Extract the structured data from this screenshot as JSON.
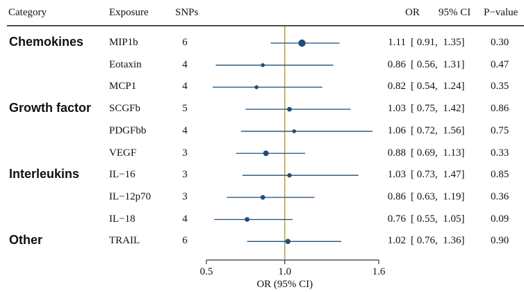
{
  "header": {
    "category": "Category",
    "exposure": "Exposure",
    "snps": "SNPs",
    "or": "OR",
    "ci": "95% CI",
    "p": "P−value"
  },
  "chart_data": {
    "type": "forest",
    "xlabel": "OR (95% CI)",
    "xlim": [
      0.5,
      1.6
    ],
    "ticks": [
      "0.5",
      "1.0",
      "1.6"
    ],
    "tick_values": [
      0.5,
      1.0,
      1.6
    ],
    "reference_line": 1.0,
    "colors": {
      "point": "#1f4e79",
      "ref_line": "#b5a642",
      "axis": "#333333"
    },
    "groups": [
      {
        "category": "Chemokines",
        "first_row": 0
      },
      {
        "category": "Growth factor",
        "first_row": 3
      },
      {
        "category": "Interleukins",
        "first_row": 6
      },
      {
        "category": "Other",
        "first_row": 9
      }
    ],
    "rows": [
      {
        "exposure": "MIP1b",
        "snps": "6",
        "or": 1.11,
        "lo": 0.91,
        "hi": 1.35,
        "or_text": "1.11",
        "ci_text": "[ 0.91,  1.35]",
        "p": "0.30",
        "weight": 3
      },
      {
        "exposure": "Eotaxin",
        "snps": "4",
        "or": 0.86,
        "lo": 0.56,
        "hi": 1.31,
        "or_text": "0.86",
        "ci_text": "[ 0.56,  1.31]",
        "p": "0.47",
        "weight": 1
      },
      {
        "exposure": "MCP1",
        "snps": "4",
        "or": 0.82,
        "lo": 0.54,
        "hi": 1.24,
        "or_text": "0.82",
        "ci_text": "[ 0.54,  1.24]",
        "p": "0.35",
        "weight": 1
      },
      {
        "exposure": "SCGFb",
        "snps": "5",
        "or": 1.03,
        "lo": 0.75,
        "hi": 1.42,
        "or_text": "1.03",
        "ci_text": "[ 0.75,  1.42]",
        "p": "0.86",
        "weight": 1.5
      },
      {
        "exposure": "PDGFbb",
        "snps": "4",
        "or": 1.06,
        "lo": 0.72,
        "hi": 1.56,
        "or_text": "1.06",
        "ci_text": "[ 0.72,  1.56]",
        "p": "0.75",
        "weight": 1
      },
      {
        "exposure": "VEGF",
        "snps": "3",
        "or": 0.88,
        "lo": 0.69,
        "hi": 1.13,
        "or_text": "0.88",
        "ci_text": "[ 0.69,  1.13]",
        "p": "0.33",
        "weight": 2
      },
      {
        "exposure": "IL−16",
        "snps": "3",
        "or": 1.03,
        "lo": 0.73,
        "hi": 1.47,
        "or_text": "1.03",
        "ci_text": "[ 0.73,  1.47]",
        "p": "0.85",
        "weight": 1.3
      },
      {
        "exposure": "IL−12p70",
        "snps": "3",
        "or": 0.86,
        "lo": 0.63,
        "hi": 1.19,
        "or_text": "0.86",
        "ci_text": "[ 0.63,  1.19]",
        "p": "0.36",
        "weight": 1.5
      },
      {
        "exposure": "IL−18",
        "snps": "4",
        "or": 0.76,
        "lo": 0.55,
        "hi": 1.05,
        "or_text": "0.76",
        "ci_text": "[ 0.55,  1.05]",
        "p": "0.09",
        "weight": 1.5
      },
      {
        "exposure": "TRAIL",
        "snps": "6",
        "or": 1.02,
        "lo": 0.76,
        "hi": 1.36,
        "or_text": "1.02",
        "ci_text": "[ 0.76,  1.36]",
        "p": "0.90",
        "weight": 1.8
      }
    ]
  }
}
